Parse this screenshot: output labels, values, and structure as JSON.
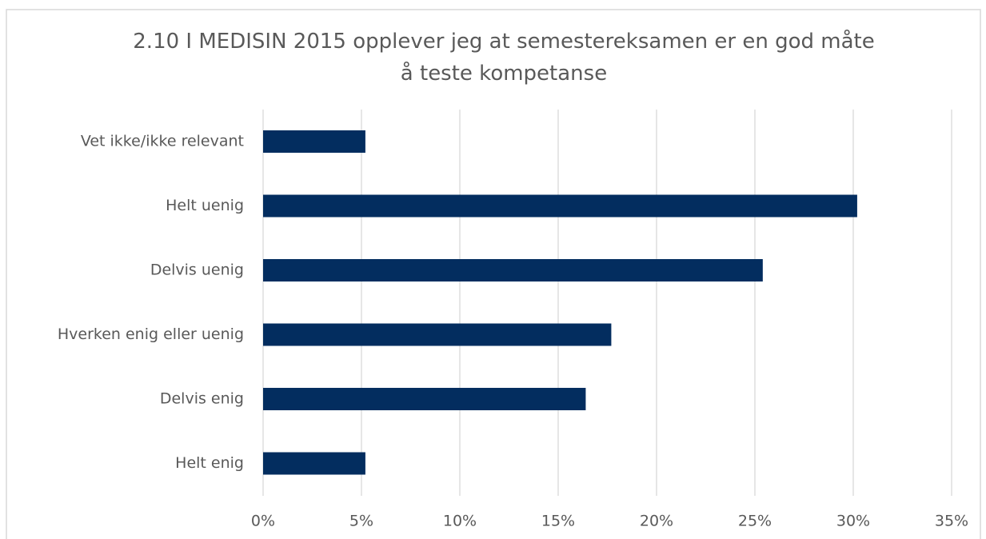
{
  "chart_data": {
    "type": "barh",
    "title": "2.10 I MEDISIN 2015 opplever jeg at semestereksamen er en god måte å teste kompetanse",
    "categories": [
      "Vet ikke/ikke relevant",
      "Helt uenig",
      "Delvis uenig",
      "Hverken enig eller uenig",
      "Delvis enig",
      "Helt enig"
    ],
    "values": [
      5.2,
      30.2,
      25.4,
      17.7,
      16.4,
      5.2
    ],
    "color": "#032d5f",
    "xlim": [
      0,
      35
    ],
    "xticks": [
      {
        "value": 0,
        "label": "0%"
      },
      {
        "value": 5,
        "label": "5%"
      },
      {
        "value": 10,
        "label": "10%"
      },
      {
        "value": 15,
        "label": "15%"
      },
      {
        "value": 20,
        "label": "20%"
      },
      {
        "value": 25,
        "label": "25%"
      },
      {
        "value": 30,
        "label": "30%"
      },
      {
        "value": 35,
        "label": "35%"
      }
    ],
    "grid": true
  }
}
